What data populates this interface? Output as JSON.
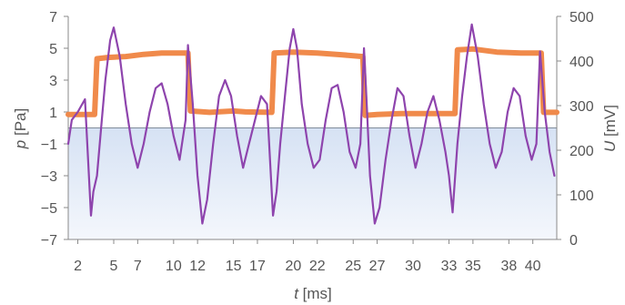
{
  "chart_data": {
    "type": "line",
    "title": "",
    "xlabel": "t [ms]",
    "ylabel_left": "p [Pa]",
    "ylabel_right": "U [mV]",
    "xlim": [
      1.2,
      42
    ],
    "ylim_left": [
      -7,
      7
    ],
    "ylim_right": [
      0,
      500
    ],
    "x_ticks": [
      2,
      5,
      7,
      10,
      12,
      15,
      17,
      20,
      22,
      25,
      27,
      30,
      33,
      35,
      38,
      40
    ],
    "x_tick_labels": [
      "2",
      "5",
      "7",
      "10",
      "12",
      "15",
      "17",
      "20",
      "22",
      "25",
      "27",
      "30",
      "33",
      "35",
      "38",
      "40"
    ],
    "y_left_ticks": [
      7,
      5,
      3,
      1,
      -1,
      -3,
      -5,
      -7
    ],
    "y_left_tick_labels": [
      "7",
      "5",
      "3",
      "1",
      "−1",
      "−3",
      "−5",
      "−7"
    ],
    "y_right_ticks": [
      500,
      400,
      300,
      200,
      100,
      0
    ],
    "y_right_tick_labels": [
      "500",
      "400",
      "300",
      "200",
      "100",
      "0"
    ],
    "reference_line": {
      "axis": "left",
      "value": 0
    },
    "grid": false,
    "series": [
      {
        "axis": "left",
        "color": "#8e44ad",
        "x": [
          1.2,
          1.5,
          2.0,
          2.6,
          3.1,
          3.3,
          3.6,
          4.0,
          4.3,
          4.7,
          5.0,
          5.5,
          6.0,
          6.5,
          7.0,
          7.5,
          8.0,
          8.5,
          9.0,
          9.5,
          10.0,
          10.5,
          11.0,
          11.2,
          11.6,
          12.0,
          12.4,
          12.8,
          13.3,
          13.8,
          14.3,
          14.8,
          15.3,
          15.8,
          16.3,
          16.8,
          17.3,
          17.8,
          18.3,
          18.6,
          18.9,
          19.3,
          19.7,
          20.0,
          20.3,
          20.7,
          21.2,
          21.7,
          22.2,
          22.7,
          23.2,
          23.7,
          24.2,
          24.7,
          25.2,
          25.6,
          25.9,
          26.1,
          26.4,
          26.8,
          27.2,
          27.7,
          28.2,
          28.7,
          29.2,
          29.7,
          30.2,
          30.7,
          31.2,
          31.7,
          32.2,
          32.7,
          33.0,
          33.3,
          33.7,
          34.1,
          34.5,
          34.9,
          35.4,
          35.9,
          36.4,
          36.9,
          37.4,
          37.9,
          38.4,
          38.9,
          39.4,
          39.9,
          40.3,
          40.6,
          41.0,
          41.4,
          41.8
        ],
        "y": [
          -1.0,
          0.5,
          1.0,
          1.8,
          -5.5,
          -4.0,
          -3.0,
          0.5,
          3.0,
          5.5,
          6.3,
          4.5,
          1.5,
          -1.0,
          -2.5,
          -1.0,
          1.0,
          2.5,
          2.8,
          1.5,
          -0.5,
          -2.0,
          0.5,
          5.2,
          1.5,
          -3.0,
          -6.0,
          -4.5,
          -1.0,
          2.0,
          3.0,
          2.0,
          -0.5,
          -2.5,
          -1.0,
          0.5,
          2.0,
          1.5,
          -5.5,
          -4.0,
          -1.0,
          2.0,
          5.0,
          6.2,
          5.0,
          1.5,
          -1.0,
          -2.5,
          -2.0,
          0.5,
          2.5,
          2.7,
          1.0,
          -1.5,
          -2.5,
          -1.0,
          5.0,
          2.0,
          -3.0,
          -6.0,
          -5.0,
          -2.0,
          0.5,
          2.5,
          2.0,
          -0.5,
          -2.5,
          -1.0,
          1.0,
          2.0,
          0.5,
          -1.5,
          -3.0,
          -5.3,
          -1.0,
          2.0,
          4.5,
          6.5,
          4.5,
          1.5,
          -1.0,
          -2.5,
          -1.5,
          1.0,
          2.5,
          2.0,
          -0.5,
          -2.0,
          -1.0,
          4.8,
          1.0,
          -1.5,
          -3.0
        ]
      },
      {
        "axis": "right",
        "color": "#f08a4b",
        "x": [
          1.2,
          3.4,
          3.6,
          4.5,
          6.0,
          7.5,
          9.0,
          10.5,
          11.2,
          11.4,
          13.0,
          15.0,
          16.0,
          18.2,
          18.4,
          20.0,
          22.0,
          24.0,
          25.8,
          26.0,
          27.0,
          29.0,
          31.0,
          33.5,
          33.7,
          35.0,
          37.0,
          39.0,
          40.7,
          40.9,
          42.0
        ],
        "y": [
          280,
          280,
          405,
          408,
          410,
          415,
          418,
          418,
          418,
          288,
          285,
          288,
          286,
          285,
          418,
          420,
          418,
          414,
          410,
          278,
          280,
          282,
          282,
          282,
          425,
          427,
          420,
          418,
          418,
          285,
          285
        ]
      }
    ]
  }
}
